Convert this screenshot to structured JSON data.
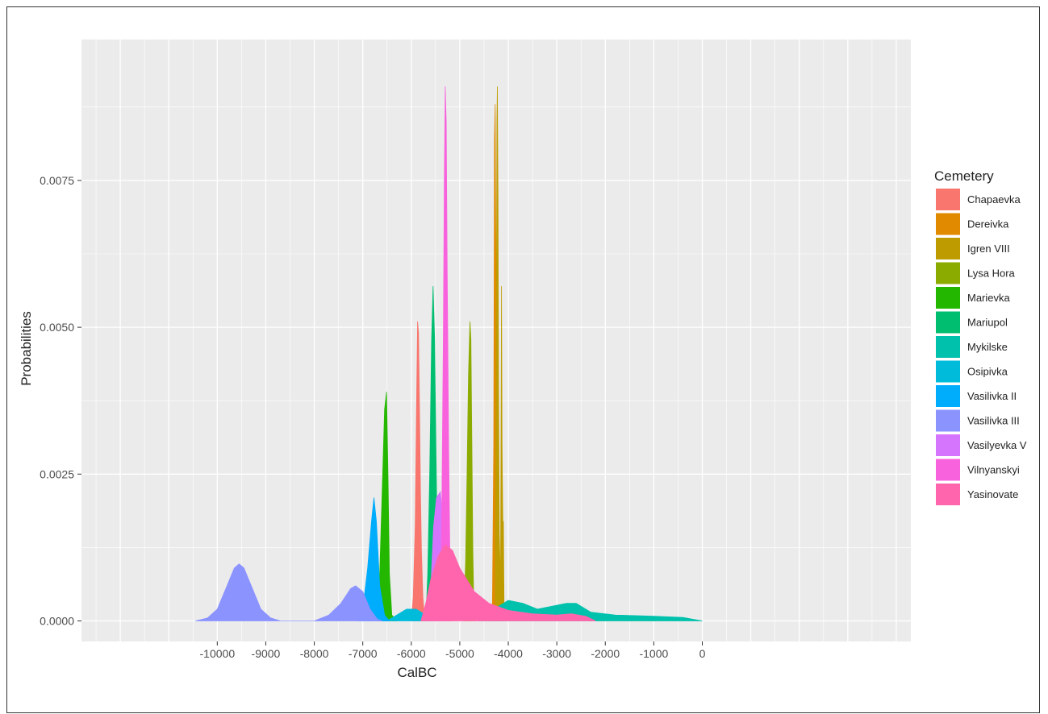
{
  "chart_data": {
    "type": "area",
    "xlabel": "CalBC",
    "ylabel": "Probabilities",
    "xlim": [
      -12800,
      4300
    ],
    "ylim": [
      -0.00035,
      0.0099
    ],
    "x_ticks": [
      -10000,
      -9000,
      -8000,
      -7000,
      -6000,
      -5000,
      -4000,
      -3000,
      -2000,
      -1000,
      0
    ],
    "x_tick_labels": [
      "-10000",
      "-9000",
      "-8000",
      "-7000",
      "-6000",
      "-5000",
      "-4000",
      "-3000",
      "-2000",
      "-1000",
      "0"
    ],
    "y_ticks": [
      0.0,
      0.0025,
      0.005,
      0.0075
    ],
    "y_tick_labels": [
      "0.0000",
      "0.0025",
      "0.0050",
      "0.0075"
    ],
    "grid": true,
    "legend_title": "Cemetery",
    "legend_position": "right",
    "series": [
      {
        "name": "Chapaevka",
        "color": "#F8766D",
        "points": [
          [
            -6000,
            0
          ],
          [
            -5960,
            0.0004
          ],
          [
            -5920,
            0.0016
          ],
          [
            -5890,
            0.0038
          ],
          [
            -5870,
            0.0051
          ],
          [
            -5850,
            0.0049
          ],
          [
            -5830,
            0.0036
          ],
          [
            -5810,
            0.0022
          ],
          [
            -5790,
            0.0012
          ],
          [
            -5760,
            0.0004
          ],
          [
            -5720,
            0
          ]
        ]
      },
      {
        "name": "Dereivka",
        "color": "#E18A00",
        "points": [
          [
            -4330,
            0
          ],
          [
            -4300,
            0.003
          ],
          [
            -4285,
            0.0082
          ],
          [
            -4270,
            0.0088
          ],
          [
            -4255,
            0.006
          ],
          [
            -4240,
            0.0025
          ],
          [
            -4220,
            0
          ]
        ]
      },
      {
        "name": "Igren VIII",
        "color": "#BE9C00",
        "points": [
          [
            -4270,
            0
          ],
          [
            -4250,
            0.004
          ],
          [
            -4235,
            0.0085
          ],
          [
            -4225,
            0.0091
          ],
          [
            -4212,
            0.0072
          ],
          [
            -4200,
            0.004
          ],
          [
            -4185,
            0.0015
          ],
          [
            -4160,
            0.0006
          ],
          [
            -4140,
            0.0057
          ],
          [
            -4128,
            0.003
          ],
          [
            -4110,
            0.0015
          ],
          [
            -4100,
            0.0017
          ],
          [
            -4085,
            0
          ]
        ]
      },
      {
        "name": "Lysa Hora",
        "color": "#8CAB00",
        "points": [
          [
            -4920,
            0
          ],
          [
            -4880,
            0.001
          ],
          [
            -4850,
            0.0025
          ],
          [
            -4820,
            0.0042
          ],
          [
            -4790,
            0.0051
          ],
          [
            -4770,
            0.0048
          ],
          [
            -4750,
            0.003
          ],
          [
            -4730,
            0.0012
          ],
          [
            -4710,
            0.0003
          ],
          [
            -4680,
            0
          ]
        ]
      },
      {
        "name": "Marievka",
        "color": "#24B700",
        "points": [
          [
            -6720,
            0
          ],
          [
            -6650,
            0.0008
          ],
          [
            -6600,
            0.0022
          ],
          [
            -6550,
            0.0036
          ],
          [
            -6510,
            0.0039
          ],
          [
            -6480,
            0.0025
          ],
          [
            -6450,
            0.0008
          ],
          [
            -6400,
            0.0001
          ],
          [
            -6300,
            0
          ]
        ]
      },
      {
        "name": "Mariupol",
        "color": "#00BE70",
        "points": [
          [
            -5700,
            0
          ],
          [
            -5660,
            0.0008
          ],
          [
            -5620,
            0.0025
          ],
          [
            -5580,
            0.0048
          ],
          [
            -5550,
            0.0057
          ],
          [
            -5520,
            0.0048
          ],
          [
            -5490,
            0.0028
          ],
          [
            -5460,
            0.001
          ],
          [
            -5420,
            0
          ]
        ]
      },
      {
        "name": "Mykilske",
        "color": "#00C1AB",
        "points": [
          [
            -4600,
            0
          ],
          [
            -4300,
            0.0002
          ],
          [
            -4000,
            0.00035
          ],
          [
            -3700,
            0.0003
          ],
          [
            -3400,
            0.0002
          ],
          [
            -3100,
            0.00025
          ],
          [
            -2800,
            0.0003
          ],
          [
            -2600,
            0.0003
          ],
          [
            -2300,
            0.00015
          ],
          [
            -1800,
            0.0001
          ],
          [
            -1000,
            8e-05
          ],
          [
            -400,
            6e-05
          ],
          [
            0,
            0
          ]
        ]
      },
      {
        "name": "Osipivka",
        "color": "#00BBDA",
        "points": [
          [
            -6500,
            0
          ],
          [
            -6300,
            0.0001
          ],
          [
            -6100,
            0.0002
          ],
          [
            -5900,
            0.0002
          ],
          [
            -5700,
            0.0001
          ],
          [
            -5500,
            0
          ]
        ]
      },
      {
        "name": "Vasilivka II",
        "color": "#00ACFC",
        "points": [
          [
            -7100,
            0
          ],
          [
            -7000,
            0.0002
          ],
          [
            -6900,
            0.0009
          ],
          [
            -6820,
            0.0017
          ],
          [
            -6770,
            0.0021
          ],
          [
            -6720,
            0.0017
          ],
          [
            -6650,
            0.0006
          ],
          [
            -6550,
            0.0001
          ],
          [
            -6450,
            0
          ]
        ]
      },
      {
        "name": "Vasilivka III",
        "color": "#8B93FF",
        "points": [
          [
            -10450,
            0
          ],
          [
            -10200,
            5e-05
          ],
          [
            -10000,
            0.0002
          ],
          [
            -9800,
            0.0006
          ],
          [
            -9650,
            0.0009
          ],
          [
            -9550,
            0.00097
          ],
          [
            -9450,
            0.0009
          ],
          [
            -9300,
            0.0006
          ],
          [
            -9100,
            0.0002
          ],
          [
            -8900,
            5e-05
          ],
          [
            -8700,
            0
          ],
          [
            -8300,
            0
          ],
          [
            -8000,
            0
          ],
          [
            -7700,
            0.0001
          ],
          [
            -7450,
            0.0003
          ],
          [
            -7250,
            0.00055
          ],
          [
            -7150,
            0.0006
          ],
          [
            -7000,
            0.0005
          ],
          [
            -6850,
            0.0002
          ],
          [
            -6700,
            3e-05
          ],
          [
            -6600,
            0
          ]
        ]
      },
      {
        "name": "Vasilyevka V",
        "color": "#D575FE",
        "points": [
          [
            -5650,
            0
          ],
          [
            -5600,
            0.0005
          ],
          [
            -5540,
            0.0016
          ],
          [
            -5480,
            0.0021
          ],
          [
            -5400,
            0.0022
          ],
          [
            -5330,
            0.0015
          ],
          [
            -5270,
            0.0006
          ],
          [
            -5220,
            0
          ]
        ]
      },
      {
        "name": "Vilnyanskyi",
        "color": "#F962DD",
        "points": [
          [
            -5400,
            0
          ],
          [
            -5370,
            0.002
          ],
          [
            -5340,
            0.0048
          ],
          [
            -5320,
            0.0075
          ],
          [
            -5300,
            0.0091
          ],
          [
            -5280,
            0.0085
          ],
          [
            -5260,
            0.006
          ],
          [
            -5230,
            0.003
          ],
          [
            -5200,
            0.0008
          ],
          [
            -5160,
            0
          ]
        ]
      },
      {
        "name": "Yasinovate",
        "color": "#FF65AC",
        "points": [
          [
            -5800,
            0
          ],
          [
            -5700,
            0.0003
          ],
          [
            -5600,
            0.0007
          ],
          [
            -5450,
            0.0011
          ],
          [
            -5300,
            0.0013
          ],
          [
            -5150,
            0.0012
          ],
          [
            -5000,
            0.0009
          ],
          [
            -4700,
            0.0005
          ],
          [
            -4400,
            0.0003
          ],
          [
            -4000,
            0.00018
          ],
          [
            -3500,
            0.00012
          ],
          [
            -3000,
            0.0001
          ],
          [
            -2700,
            0.00012
          ],
          [
            -2400,
            8e-05
          ],
          [
            -2200,
            0
          ]
        ]
      }
    ]
  }
}
